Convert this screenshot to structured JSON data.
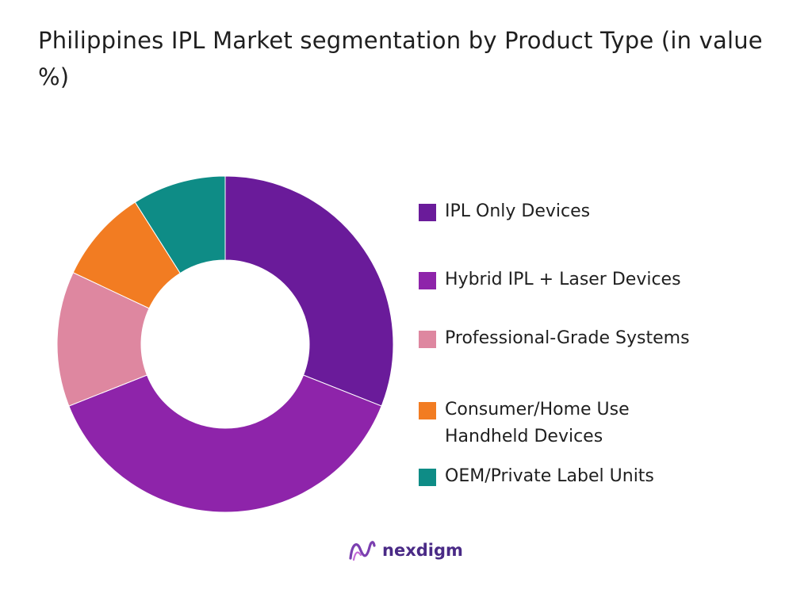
{
  "chart_data": {
    "type": "pie",
    "title": "Philippines IPL Market segmentation by Product Type (in value %)",
    "categories": [
      "IPL Only Devices",
      "Hybrid IPL + Laser Devices",
      "Professional-Grade Systems",
      "Consumer/Home Use Handheld Devices",
      "OEM/Private Label Units"
    ],
    "values": [
      31,
      38,
      13,
      9,
      9
    ],
    "colors": [
      "#6a1b9a",
      "#8e24aa",
      "#de87a0",
      "#f27c22",
      "#0e8c86"
    ],
    "donut": true,
    "legend": "right"
  },
  "logo": {
    "text": "nexdigm"
  }
}
